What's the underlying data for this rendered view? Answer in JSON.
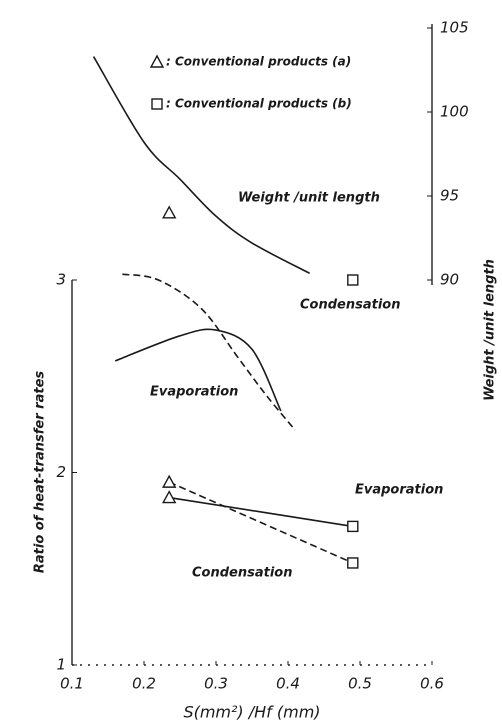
{
  "chart_data": {
    "type": "line",
    "xlabel": "S(mm²) /Hf (mm)",
    "ylabel": "Ratio of heat-transfer rates",
    "y2label": "Weight /unit length",
    "xlim": [
      0.1,
      0.6
    ],
    "xticks": [
      0.1,
      0.2,
      0.3,
      0.4,
      0.5,
      0.6
    ],
    "ylim": [
      1,
      3
    ],
    "yticks": [
      1,
      2,
      3
    ],
    "y2lim": [
      90,
      105
    ],
    "y2ticks": [
      90,
      95,
      100,
      105
    ],
    "color": "#1a1a1a",
    "series": [
      {
        "name": "Weight /unit length",
        "axis": "y2",
        "style": "solid",
        "x": [
          0.13,
          0.2,
          0.25,
          0.3,
          0.35,
          0.43
        ],
        "values": [
          103.3,
          98.2,
          96,
          93.8,
          92.2,
          90.4
        ]
      },
      {
        "name": "Condensation",
        "axis": "y",
        "style": "dashed",
        "x": [
          0.17,
          0.22,
          0.28,
          0.33,
          0.37,
          0.41
        ],
        "values": [
          3.03,
          3.0,
          2.85,
          2.6,
          2.4,
          2.22
        ]
      },
      {
        "name": "Evaporation",
        "axis": "y",
        "style": "solid",
        "x": [
          0.16,
          0.25,
          0.3,
          0.35,
          0.39
        ],
        "values": [
          2.58,
          2.71,
          2.74,
          2.64,
          2.32
        ]
      },
      {
        "name": "Evaporation",
        "axis": "y",
        "style": "solid",
        "x": [
          0.235,
          0.49
        ],
        "values": [
          1.87,
          1.72
        ]
      },
      {
        "name": "Condensation",
        "axis": "y",
        "style": "dashed",
        "x": [
          0.235,
          0.49
        ],
        "values": [
          1.95,
          1.53
        ]
      }
    ],
    "markers": [
      {
        "shape": "triangle",
        "label": ": Conventional products (a)",
        "x": [
          0.235,
          0.235,
          0.235
        ],
        "values": [
          94,
          1.95,
          1.87
        ],
        "axis": [
          "y2",
          "y",
          "y"
        ]
      },
      {
        "shape": "square",
        "label": ": Conventional products (b)",
        "x": [
          0.49,
          0.49,
          0.49
        ],
        "values": [
          90,
          1.72,
          1.53
        ],
        "axis": [
          "y2",
          "y",
          "y"
        ]
      }
    ]
  }
}
